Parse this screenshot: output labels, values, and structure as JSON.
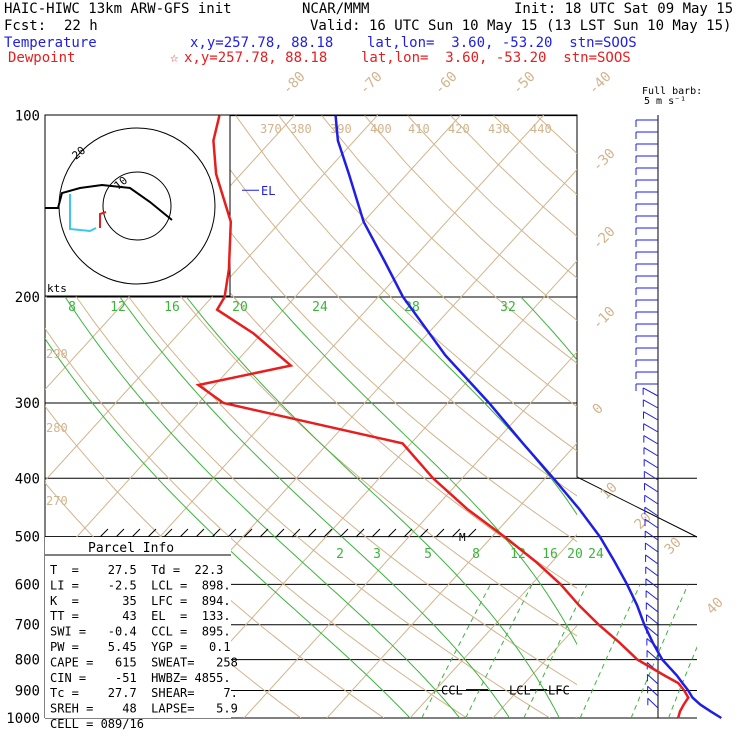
{
  "header": {
    "model": "HAIC-HIWC 13km ARW-GFS init",
    "org": "NCAR/MMM",
    "init": "Init: 18 UTC Sat 09 May 15",
    "fcst_label": "Fcst:",
    "fcst_value": "22 h",
    "valid": "Valid: 16 UTC Sun 10 May 15 (13 LST Sun 10 May 15)",
    "temp_label": "Temperature",
    "temp_loc": "x,y=257.78, 88.18    lat,lon=  3.60, -53.20  stn=SOOS",
    "dew_label": "Dewpoint",
    "dew_loc": "x,y=257.78, 88.18    lat,lon=  3.60, -53.20  stn=SOOS",
    "dew_marker": "☆"
  },
  "barb_legend": {
    "line1": "Full barb:",
    "line2": "5 m s⁻¹"
  },
  "hodograph": {
    "ring_labels": [
      "10",
      "20"
    ],
    "units": "kts"
  },
  "parcel_info": {
    "title": "Parcel Info",
    "rows": [
      "T  =    27.5  Td =  22.3",
      "LI =    -2.5  LCL =  898.",
      "K  =      35  LFC =  894.",
      "TT =      43  EL  =  133.",
      "SWI =   -0.4  CCL =  895.",
      "PW =    5.45  YGP =   0.1",
      "CAPE =   615  SWEAT=   258",
      "CIN =    -51  HWBZ= 4855.",
      "Tc =    27.7  SHEAR=    7.",
      "SREH =    48  LAPSE=   5.9",
      "CELL = 089/16"
    ]
  },
  "chart_data": {
    "type": "line",
    "title": "",
    "xlabel": "",
    "ylabel": "",
    "y_scale": "log pressure (hPa)",
    "pressure_ticks": [
      "100",
      "200",
      "300",
      "400",
      "500",
      "600",
      "700",
      "800",
      "900",
      "1000"
    ],
    "isotherm_labels": [
      "-80",
      "-70",
      "-60",
      "-50",
      "-40",
      "-30",
      "-20",
      "-10",
      "0",
      "10",
      "20",
      "30",
      "40"
    ],
    "theta_labels": [
      "370",
      "380",
      "390",
      "400",
      "410",
      "420",
      "430",
      "440",
      "290",
      "280",
      "270"
    ],
    "mixing_ratio_labels_upper": [
      "8",
      "12",
      "16",
      "20",
      "24",
      "28",
      "32"
    ],
    "mixing_ratio_labels_lower": [
      "2",
      "3",
      "5",
      "8",
      "12",
      "16",
      "20",
      "24"
    ],
    "markers": {
      "el": "EL",
      "ccl": "CCL",
      "lcl": "LCL",
      "lfc": "LFC",
      "m": "M"
    },
    "series": [
      {
        "name": "Temperature",
        "color": "#1e1ee6",
        "points": [
          [
            1000,
            27.5
          ],
          [
            975,
            25.5
          ],
          [
            950,
            23.5
          ],
          [
            925,
            21.8
          ],
          [
            900,
            20.5
          ],
          [
            875,
            19.0
          ],
          [
            850,
            17.5
          ],
          [
            800,
            14.0
          ],
          [
            750,
            11.0
          ],
          [
            700,
            8.0
          ],
          [
            650,
            5.0
          ],
          [
            600,
            1.5
          ],
          [
            550,
            -2.5
          ],
          [
            500,
            -7.0
          ],
          [
            450,
            -12.5
          ],
          [
            400,
            -19.0
          ],
          [
            350,
            -26.5
          ],
          [
            300,
            -35.0
          ],
          [
            250,
            -45.5
          ],
          [
            200,
            -57.0
          ],
          [
            175,
            -63.0
          ],
          [
            150,
            -70.0
          ],
          [
            125,
            -77.0
          ],
          [
            110,
            -82.0
          ],
          [
            100,
            -85.0
          ]
        ]
      },
      {
        "name": "Dewpoint",
        "color": "#e61e1e",
        "points": [
          [
            1000,
            22.3
          ],
          [
            975,
            21.8
          ],
          [
            950,
            21.5
          ],
          [
            925,
            21.3
          ],
          [
            900,
            20.0
          ],
          [
            875,
            18.5
          ],
          [
            850,
            16.0
          ],
          [
            800,
            11.0
          ],
          [
            750,
            7.0
          ],
          [
            700,
            2.5
          ],
          [
            650,
            -2.0
          ],
          [
            600,
            -6.5
          ],
          [
            550,
            -12.0
          ],
          [
            500,
            -18.5
          ],
          [
            450,
            -26.0
          ],
          [
            400,
            -33.5
          ],
          [
            350,
            -41.0
          ],
          [
            300,
            -67.0
          ],
          [
            280,
            -72.0
          ],
          [
            260,
            -63.0
          ],
          [
            230,
            -71.0
          ],
          [
            210,
            -78.0
          ],
          [
            200,
            -78.5
          ],
          [
            180,
            -81.0
          ],
          [
            150,
            -86.0
          ],
          [
            125,
            -93.0
          ],
          [
            110,
            -97.0
          ],
          [
            100,
            -99.0
          ]
        ]
      }
    ],
    "grid": true,
    "wind_barbs": {
      "full_barb_ms": 5
    }
  }
}
